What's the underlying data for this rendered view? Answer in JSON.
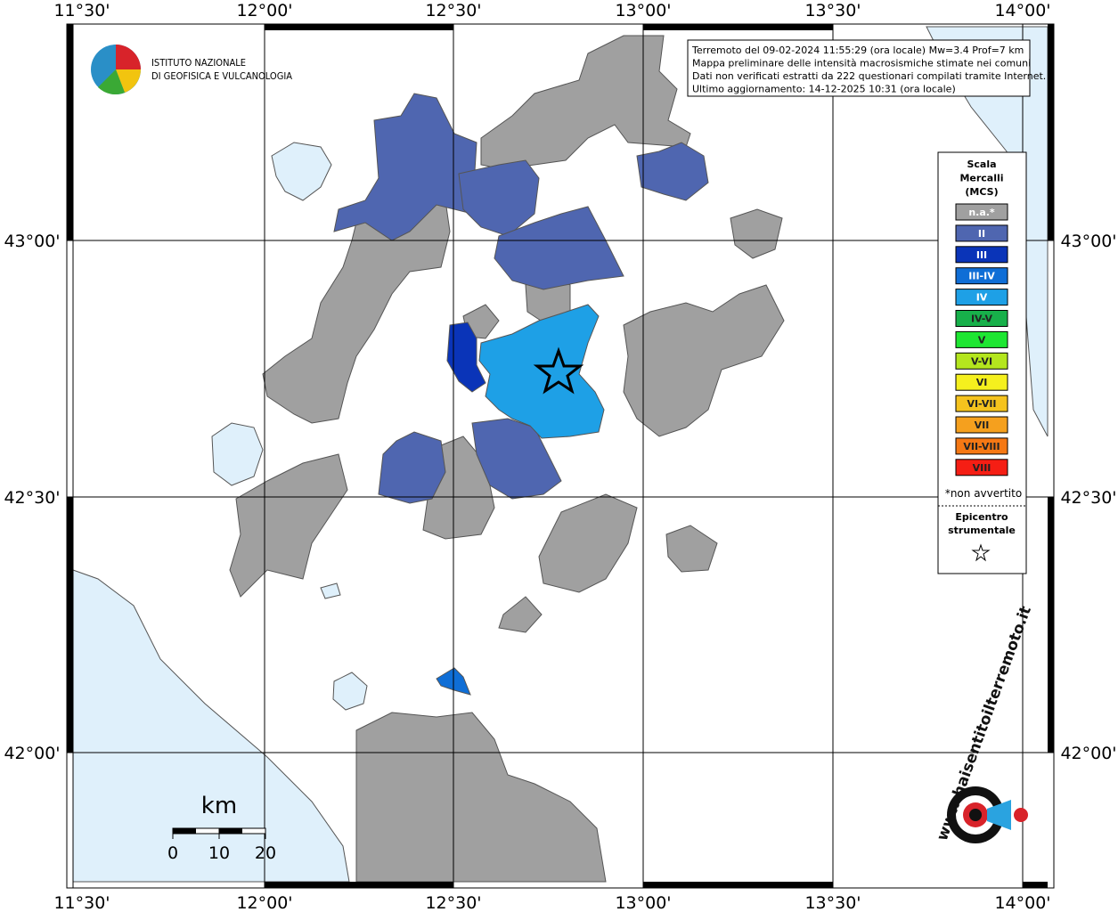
{
  "lon_labels_top": [
    "11°30'",
    "12°00'",
    "12°30'",
    "13°00'",
    "13°30'",
    "14°00'"
  ],
  "lon_labels_bottom": [
    "11°30'",
    "12°00'",
    "12°30'",
    "13°00'",
    "13°30'",
    "14°00'"
  ],
  "lat_labels_left": [
    "43°00'",
    "42°30'",
    "42°00'"
  ],
  "lat_labels_right": [
    "43°00'",
    "42°30'",
    "42°00'"
  ],
  "logo": {
    "line1": "ISTITUTO NAZIONALE",
    "line2": "DI GEOFISICA E VULCANOLOGIA"
  },
  "info": [
    "Terremoto del 09-02-2024 11:55:29 (ora locale) Mw=3.4 Prof=7 km",
    "Mappa preliminare delle intensità macrosismiche stimate nei comuni",
    "Dati non verificati estratti da 222 questionari compilati tramite Internet.",
    "Ultimo aggiornamento: 14-12-2025 10:31 (ora locale)"
  ],
  "legend": {
    "title": [
      "Scala",
      "Mercalli",
      "(MCS)"
    ],
    "items": [
      {
        "label": "n.a.*",
        "color": "#a0a0a0"
      },
      {
        "label": "II",
        "color": "#4f66b0"
      },
      {
        "label": "III",
        "color": "#0a34b8"
      },
      {
        "label": "III-IV",
        "color": "#0f6ed6"
      },
      {
        "label": "IV",
        "color": "#1ea0e6"
      },
      {
        "label": "IV-V",
        "color": "#17b04a"
      },
      {
        "label": "V",
        "color": "#1ee632"
      },
      {
        "label": "V-VI",
        "color": "#b4e61e"
      },
      {
        "label": "VI",
        "color": "#f5f01e"
      },
      {
        "label": "VI-VII",
        "color": "#f5c31e"
      },
      {
        "label": "VII",
        "color": "#f5a01e"
      },
      {
        "label": "VII-VIII",
        "color": "#f57814"
      },
      {
        "label": "VIII",
        "color": "#f51e14"
      }
    ],
    "note": "*non avvertito",
    "epicenter": [
      "Epicentro",
      "strumentale"
    ]
  },
  "scale": {
    "unit": "km",
    "labels": [
      "0",
      "10",
      "20"
    ]
  },
  "site_logo": "www.haisentitoilterremoto.it"
}
